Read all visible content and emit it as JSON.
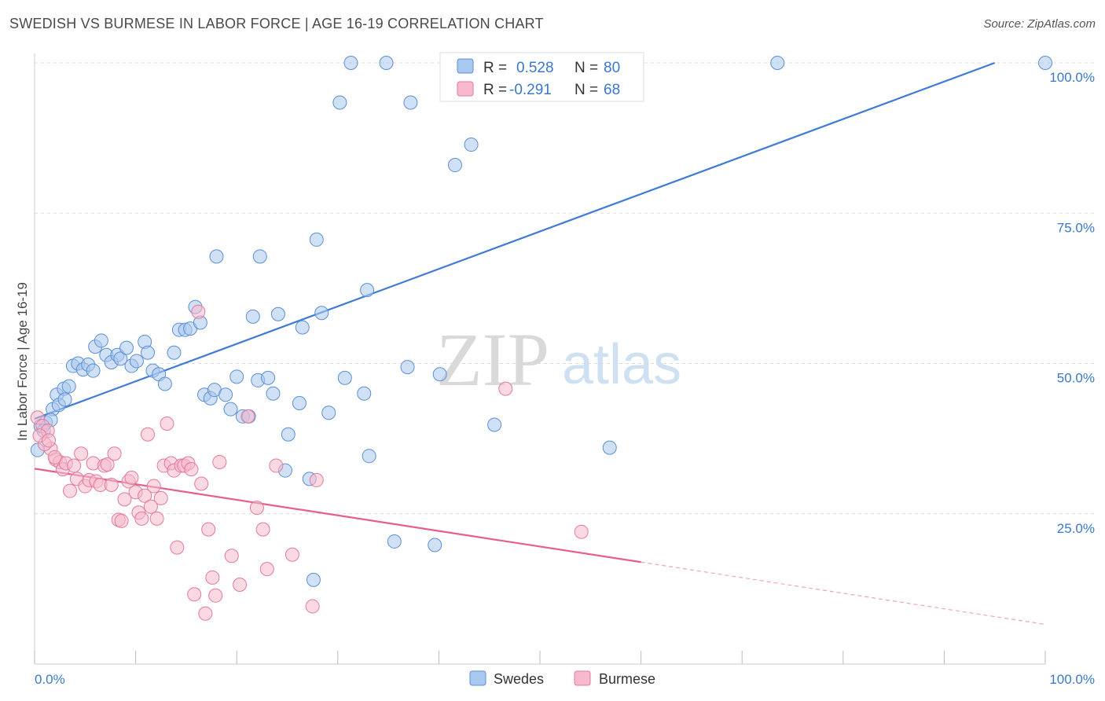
{
  "header": {
    "title": "SWEDISH VS BURMESE IN LABOR FORCE | AGE 16-19 CORRELATION CHART",
    "source": "Source: ZipAtlas.com"
  },
  "watermark": {
    "part1": "ZIP",
    "part2": "atlas"
  },
  "legend": {
    "r_label": "R =",
    "n_label": "N =",
    "rows": [
      {
        "name": "Swedes",
        "r": "0.528",
        "n": "80",
        "color": "#a9c8ee",
        "stroke": "#5b8fd6"
      },
      {
        "name": "Burmese",
        "r": "-0.291",
        "n": "68",
        "color": "#f7b9cc",
        "stroke": "#e27a9b"
      }
    ]
  },
  "chart_data": {
    "type": "scatter",
    "title": "SWEDISH VS BURMESE IN LABOR FORCE | AGE 16-19 CORRELATION CHART",
    "xlabel": "",
    "ylabel": "In Labor Force | Age 16-19",
    "xlim": [
      0,
      100
    ],
    "ylim": [
      0,
      100
    ],
    "x_tick_labels": [
      "0.0%",
      "100.0%"
    ],
    "y_tick_labels": [
      "100.0%",
      "75.0%",
      "50.0%",
      "25.0%"
    ],
    "y_ticks": [
      100,
      75,
      50,
      25
    ],
    "grid": true,
    "legend_position": "top-center",
    "series": [
      {
        "name": "Swedes",
        "color": "#5b8fd6",
        "fill": "#a9c8ee",
        "trend": {
          "x": [
            0,
            95
          ],
          "y": [
            40.8,
            100
          ]
        },
        "points": [
          [
            0.3,
            35.6
          ],
          [
            0.6,
            39.6
          ],
          [
            1.1,
            40.2
          ],
          [
            1.8,
            42.4
          ],
          [
            2.2,
            44.8
          ],
          [
            2.9,
            45.8
          ],
          [
            3.4,
            46.2
          ],
          [
            3.8,
            49.6
          ],
          [
            4.3,
            50
          ],
          [
            4.8,
            49
          ],
          [
            5.3,
            49.8
          ],
          [
            5.8,
            48.8
          ],
          [
            6.0,
            52.8
          ],
          [
            6.6,
            53.8
          ],
          [
            7.1,
            51.4
          ],
          [
            7.6,
            50.2
          ],
          [
            8.2,
            51.4
          ],
          [
            8.5,
            50.8
          ],
          [
            9.1,
            52.6
          ],
          [
            9.6,
            49.6
          ],
          [
            10.1,
            50.4
          ],
          [
            10.9,
            53.6
          ],
          [
            11.2,
            51.8
          ],
          [
            11.7,
            48.8
          ],
          [
            12.3,
            48.2
          ],
          [
            12.9,
            46.6
          ],
          [
            13.8,
            51.8
          ],
          [
            14.3,
            55.6
          ],
          [
            14.9,
            55.6
          ],
          [
            15.4,
            55.8
          ],
          [
            15.9,
            59.4
          ],
          [
            16.4,
            56.8
          ],
          [
            16.8,
            44.8
          ],
          [
            17.4,
            44.2
          ],
          [
            17.8,
            45.6
          ],
          [
            18.9,
            44.8
          ],
          [
            19.4,
            42.4
          ],
          [
            20.0,
            47.8
          ],
          [
            20.6,
            41.2
          ],
          [
            21.2,
            41.2
          ],
          [
            21.6,
            57.8
          ],
          [
            22.1,
            47.2
          ],
          [
            23.1,
            47.6
          ],
          [
            23.6,
            45
          ],
          [
            24.1,
            58.2
          ],
          [
            24.8,
            32.2
          ],
          [
            25.1,
            38.2
          ],
          [
            26.2,
            43.4
          ],
          [
            26.5,
            56
          ],
          [
            27.2,
            30.8
          ],
          [
            27.6,
            14
          ],
          [
            27.9,
            70.6
          ],
          [
            28.4,
            58.4
          ],
          [
            29.1,
            41.8
          ],
          [
            30.2,
            93.4
          ],
          [
            30.7,
            47.6
          ],
          [
            31.3,
            100
          ],
          [
            32.6,
            45
          ],
          [
            32.9,
            62.2
          ],
          [
            33.1,
            34.6
          ],
          [
            34.8,
            100
          ],
          [
            35.6,
            20.4
          ],
          [
            36.9,
            49.4
          ],
          [
            37.2,
            93.4
          ],
          [
            39.6,
            19.8
          ],
          [
            40.1,
            48.2
          ],
          [
            40.8,
            100
          ],
          [
            41.6,
            83
          ],
          [
            43.2,
            86.4
          ],
          [
            45.5,
            39.8
          ],
          [
            56.0,
            100
          ],
          [
            56.9,
            36
          ],
          [
            73.5,
            100
          ],
          [
            100,
            100
          ],
          [
            18.0,
            67.8
          ],
          [
            22.3,
            67.8
          ],
          [
            1.6,
            40.6
          ],
          [
            2.4,
            43.1
          ],
          [
            0.9,
            38.8
          ],
          [
            3.0,
            44.0
          ]
        ]
      },
      {
        "name": "Burmese",
        "color": "#e27a9b",
        "fill": "#f7b9cc",
        "trend": {
          "x": [
            0,
            100
          ],
          "y": [
            32.5,
            6.6
          ],
          "solid_until": 60
        },
        "points": [
          [
            0.3,
            41
          ],
          [
            0.8,
            39.6
          ],
          [
            1.3,
            38.8
          ],
          [
            1.6,
            35.8
          ],
          [
            2.1,
            34
          ],
          [
            2.5,
            33.6
          ],
          [
            2.8,
            32.4
          ],
          [
            3.1,
            33.4
          ],
          [
            3.5,
            28.8
          ],
          [
            3.9,
            33
          ],
          [
            4.2,
            30.8
          ],
          [
            4.6,
            35
          ],
          [
            5.0,
            29.6
          ],
          [
            5.4,
            30.6
          ],
          [
            5.8,
            33.4
          ],
          [
            6.1,
            30.4
          ],
          [
            6.5,
            29.8
          ],
          [
            6.9,
            33
          ],
          [
            7.2,
            33.2
          ],
          [
            7.6,
            29.8
          ],
          [
            7.9,
            35
          ],
          [
            8.3,
            24
          ],
          [
            8.6,
            23.8
          ],
          [
            8.9,
            27.4
          ],
          [
            9.3,
            30.4
          ],
          [
            9.6,
            31
          ],
          [
            10.0,
            28.6
          ],
          [
            10.3,
            25.2
          ],
          [
            10.6,
            24.2
          ],
          [
            10.9,
            28
          ],
          [
            11.2,
            38.2
          ],
          [
            11.5,
            26.2
          ],
          [
            11.8,
            29.6
          ],
          [
            12.1,
            24.2
          ],
          [
            12.5,
            27.6
          ],
          [
            12.8,
            33
          ],
          [
            13.1,
            40
          ],
          [
            13.5,
            33.4
          ],
          [
            13.8,
            32.2
          ],
          [
            14.1,
            19.4
          ],
          [
            14.5,
            33
          ],
          [
            14.8,
            33
          ],
          [
            15.2,
            33.4
          ],
          [
            15.5,
            32.4
          ],
          [
            15.8,
            11.6
          ],
          [
            16.2,
            58.6
          ],
          [
            16.5,
            30
          ],
          [
            16.9,
            8.4
          ],
          [
            17.2,
            22.4
          ],
          [
            17.6,
            14.4
          ],
          [
            17.9,
            11.4
          ],
          [
            18.3,
            33.6
          ],
          [
            19.5,
            18
          ],
          [
            20.3,
            13.2
          ],
          [
            21.1,
            41.2
          ],
          [
            22.0,
            26
          ],
          [
            22.6,
            22.4
          ],
          [
            23.0,
            15.8
          ],
          [
            23.9,
            33
          ],
          [
            25.5,
            18.2
          ],
          [
            27.5,
            9.6
          ],
          [
            27.9,
            30.6
          ],
          [
            46.6,
            45.8
          ],
          [
            54.1,
            22
          ],
          [
            1.0,
            36.6
          ],
          [
            2.0,
            34.4
          ],
          [
            0.5,
            38.0
          ],
          [
            1.4,
            37.2
          ]
        ]
      }
    ]
  }
}
